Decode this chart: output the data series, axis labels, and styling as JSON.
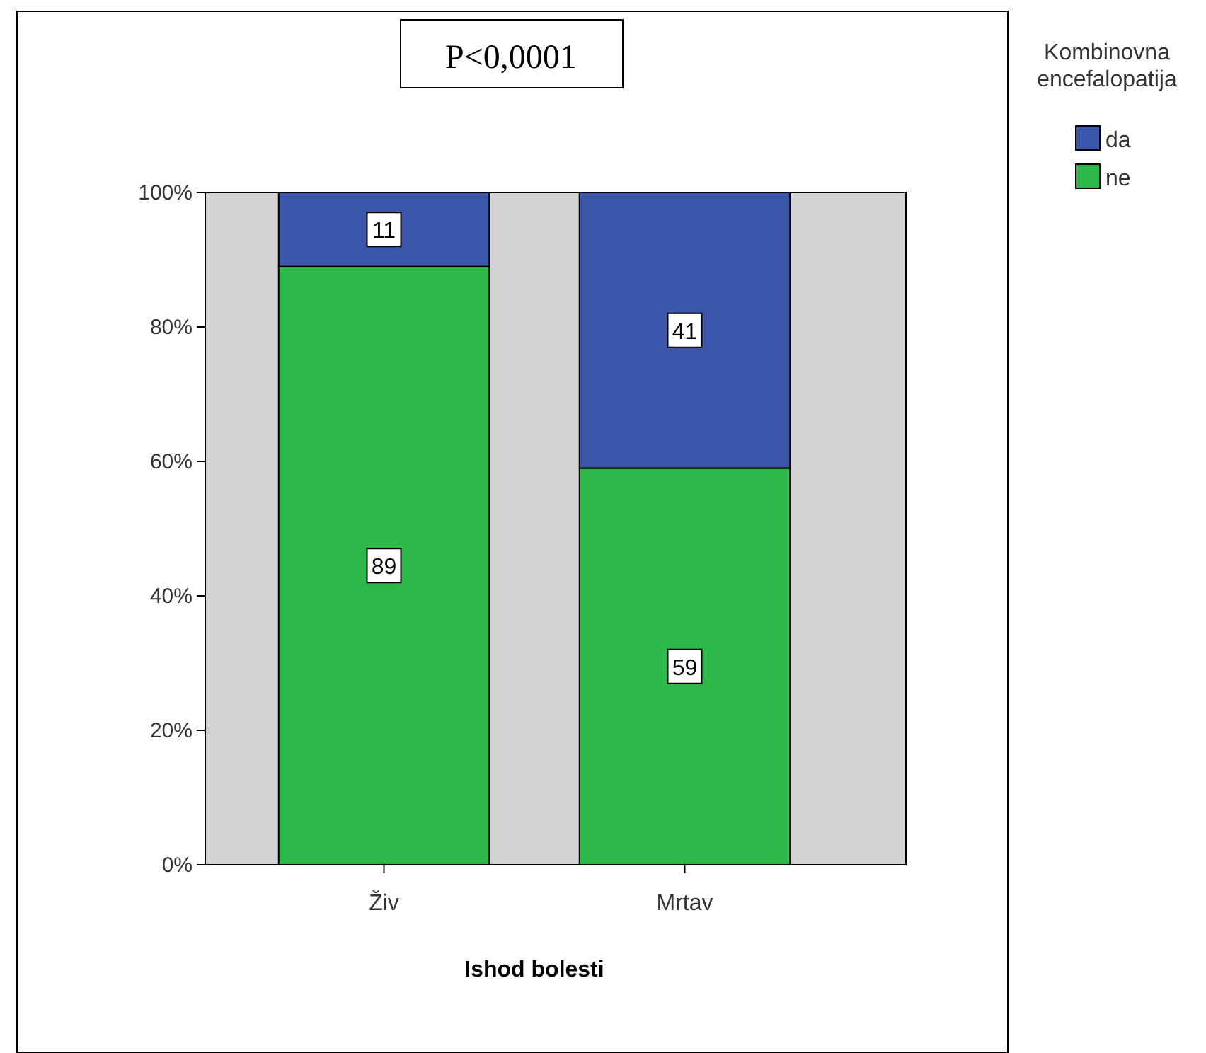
{
  "chart_data": {
    "type": "bar",
    "stacked": true,
    "categories": [
      "Živ",
      "Mrtav"
    ],
    "series": [
      {
        "name": "ne",
        "color": "#2db84a",
        "values": [
          89,
          59
        ]
      },
      {
        "name": "da",
        "color": "#3b56ab",
        "values": [
          11,
          41
        ]
      }
    ],
    "ylim": [
      0,
      100
    ],
    "yticks": [
      {
        "value": 0,
        "label": "0%"
      },
      {
        "value": 20,
        "label": "20%"
      },
      {
        "value": 40,
        "label": "40%"
      },
      {
        "value": 60,
        "label": "60%"
      },
      {
        "value": 80,
        "label": "80%"
      },
      {
        "value": 100,
        "label": "100%"
      }
    ],
    "xlabel": "Ishod bolesti",
    "legend_title": "Kombinovna encefalopatija",
    "legend": "top right",
    "data_labels": true,
    "grid": false,
    "annotations": [
      "P<0,0001"
    ]
  }
}
